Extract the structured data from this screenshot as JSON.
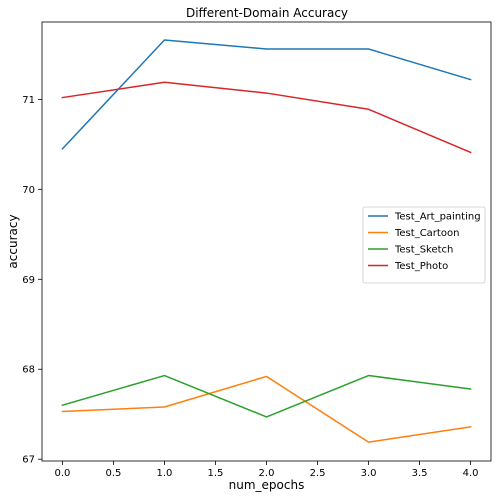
{
  "chart_data": {
    "type": "line",
    "title": "Different-Domain Accuracy",
    "xlabel": "num_epochs",
    "ylabel": "accuracy",
    "x": [
      0,
      1,
      2,
      3,
      4
    ],
    "xticks": [
      0.0,
      0.5,
      1.0,
      1.5,
      2.0,
      2.5,
      3.0,
      3.5,
      4.0
    ],
    "xtick_labels": [
      "0.0",
      "0.5",
      "1.0",
      "1.5",
      "2.0",
      "2.5",
      "3.0",
      "3.5",
      "4.0"
    ],
    "yticks": [
      67,
      68,
      69,
      70,
      71
    ],
    "ytick_labels": [
      "67",
      "68",
      "69",
      "70",
      "71"
    ],
    "xlim": [
      -0.2,
      4.2
    ],
    "ylim": [
      66.98,
      71.86
    ],
    "grid": false,
    "legend_position": "center-right",
    "series": [
      {
        "name": "Test_Art_painting",
        "color": "#1f77b4",
        "values": [
          70.45,
          71.66,
          71.56,
          71.56,
          71.22
        ]
      },
      {
        "name": "Test_Cartoon",
        "color": "#ff7f0e",
        "values": [
          67.53,
          67.58,
          67.92,
          67.19,
          67.36
        ]
      },
      {
        "name": "Test_Sketch",
        "color": "#2ca02c",
        "values": [
          67.6,
          67.93,
          67.47,
          67.93,
          67.78
        ]
      },
      {
        "name": "Test_Photo",
        "color": "#d62728",
        "values": [
          71.02,
          71.19,
          71.07,
          70.89,
          70.41
        ]
      }
    ]
  }
}
